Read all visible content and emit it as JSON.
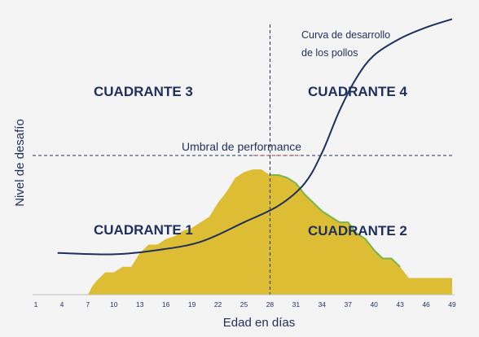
{
  "chart_data": {
    "type": "area",
    "xlabel": "Edad en días",
    "ylabel": "Nivel de desafío",
    "x_ticks": [
      "1",
      "4",
      "7",
      "10",
      "13",
      "16",
      "19",
      "22",
      "25",
      "28",
      "31",
      "34",
      "37",
      "40",
      "43",
      "46",
      "49"
    ],
    "xlim": [
      1,
      49
    ],
    "ylim": [
      0,
      10
    ],
    "grid": false,
    "quadrants": [
      "CUADRANTE 1",
      "CUADRANTE 2",
      "CUADRANTE 3",
      "CUADRANTE 4"
    ],
    "threshold": {
      "label": "Umbral de performance",
      "y": 5.0
    },
    "vertical_marker": {
      "x": 28
    },
    "curve": {
      "label_line1": "Curva de desarrollo",
      "label_line2": "de los pollos",
      "color": "#1e2f5e",
      "points": [
        [
          3.5,
          1.5
        ],
        [
          10,
          1.45
        ],
        [
          15,
          1.6
        ],
        [
          20,
          1.9
        ],
        [
          25,
          2.6
        ],
        [
          29,
          3.2
        ],
        [
          32,
          4.0
        ],
        [
          34,
          5.1
        ],
        [
          36,
          6.6
        ],
        [
          38,
          7.8
        ],
        [
          40,
          8.6
        ],
        [
          43,
          9.2
        ],
        [
          46,
          9.6
        ],
        [
          49,
          9.9
        ]
      ]
    },
    "series": [
      {
        "values_x": [
          7,
          7.5,
          8,
          9,
          10,
          11,
          12,
          13,
          14,
          15,
          16,
          17,
          18,
          19,
          20,
          21,
          22,
          23,
          24,
          25,
          26,
          27,
          28,
          29,
          30,
          31,
          32,
          33,
          34,
          35,
          36,
          37,
          38,
          39,
          40,
          41,
          42,
          43,
          44,
          45,
          46,
          47,
          48,
          49
        ],
        "values_y": [
          0,
          0.3,
          0.5,
          0.8,
          0.8,
          1.0,
          1.0,
          1.5,
          1.8,
          1.8,
          2.0,
          2.1,
          2.3,
          2.4,
          2.6,
          2.8,
          3.3,
          3.7,
          4.2,
          4.4,
          4.5,
          4.5,
          4.3,
          4.3,
          4.2,
          4.0,
          3.6,
          3.3,
          3.0,
          2.8,
          2.6,
          2.6,
          2.2,
          2.0,
          1.6,
          1.3,
          1.3,
          1.0,
          0.6,
          0.6,
          0.6,
          0.6,
          0.6,
          0.6
        ],
        "color": "#dcbd33",
        "highlight_color": "#7ab648"
      }
    ]
  }
}
